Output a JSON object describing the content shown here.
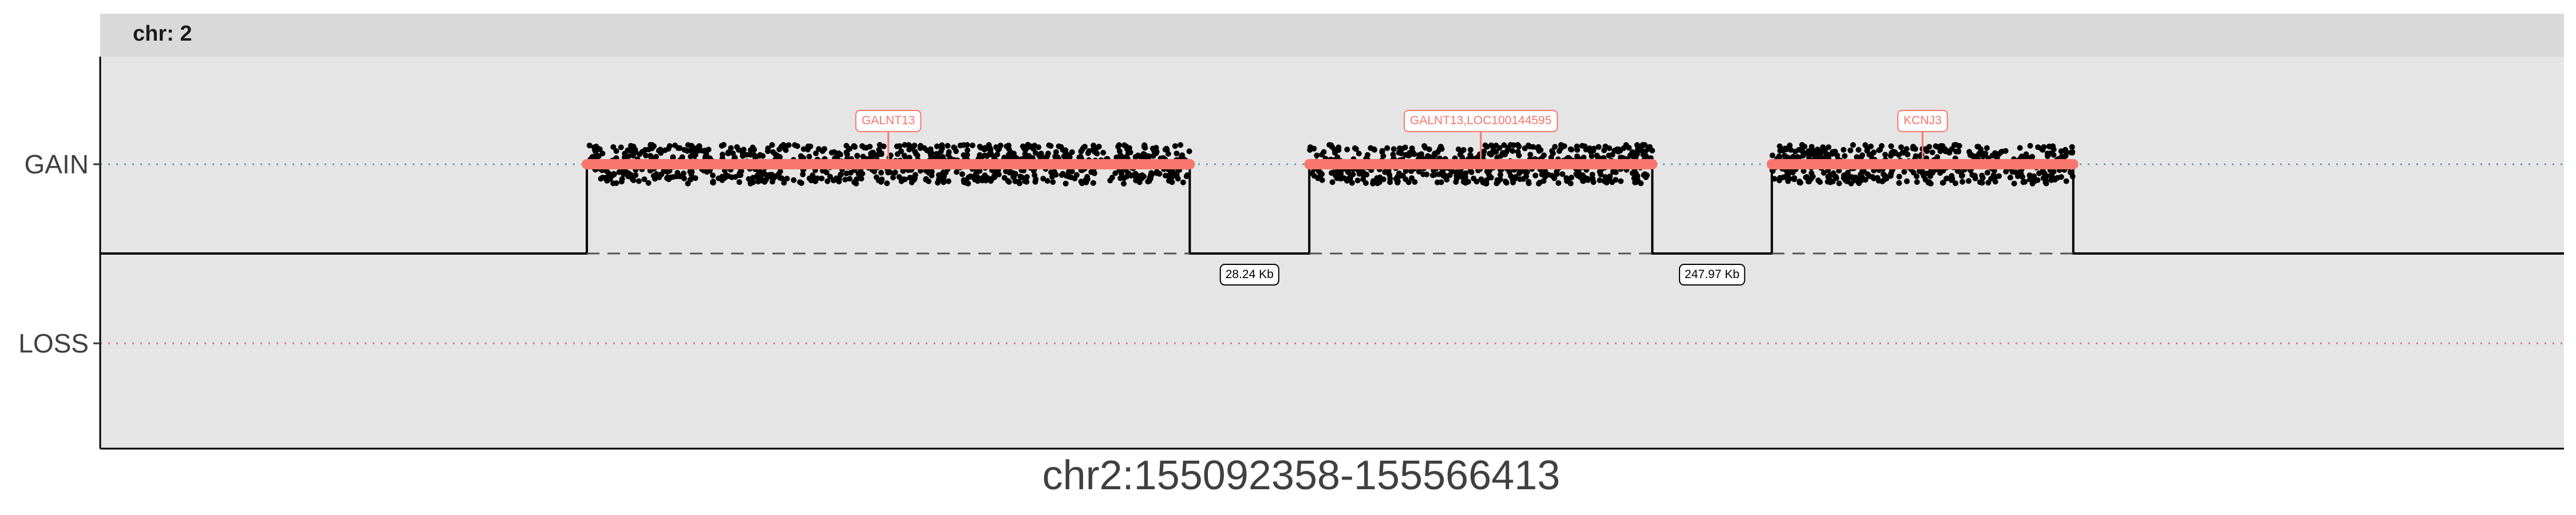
{
  "colors": {
    "panel_bg": "#e5e5e5",
    "strip_bg": "#d9d9d9",
    "gain_ref_line": "#5f9ea0",
    "loss_ref_line": "#d9727e",
    "segment": "#f8766d",
    "probe_points": "#000000",
    "step_line": "#000000",
    "gap_line": "#555555"
  },
  "chart_data": {
    "type": "scatter",
    "panel_title": "chr: 2",
    "xlabel": "chr2:155092358-155566413",
    "ylabel": "",
    "xlim": [
      155092358,
      155566413
    ],
    "y_categories": [
      "GAIN",
      "LOSS"
    ],
    "grid": false,
    "regions": [
      {
        "start": 155186000,
        "end": 155302000,
        "status": "GAIN",
        "gene_label": "GALNT13"
      },
      {
        "start": 155325000,
        "end": 155391000,
        "status": "GAIN",
        "gene_label": "GALNT13,LOC100144595"
      },
      {
        "start": 155414000,
        "end": 155472000,
        "status": "GAIN",
        "gene_label": "KCNJ3"
      }
    ],
    "gaps": [
      {
        "start": 155302000,
        "end": 155325000,
        "label": "28.24 Kb"
      },
      {
        "start": 155391000,
        "end": 155414000,
        "label": "247.97 Kb"
      }
    ]
  }
}
